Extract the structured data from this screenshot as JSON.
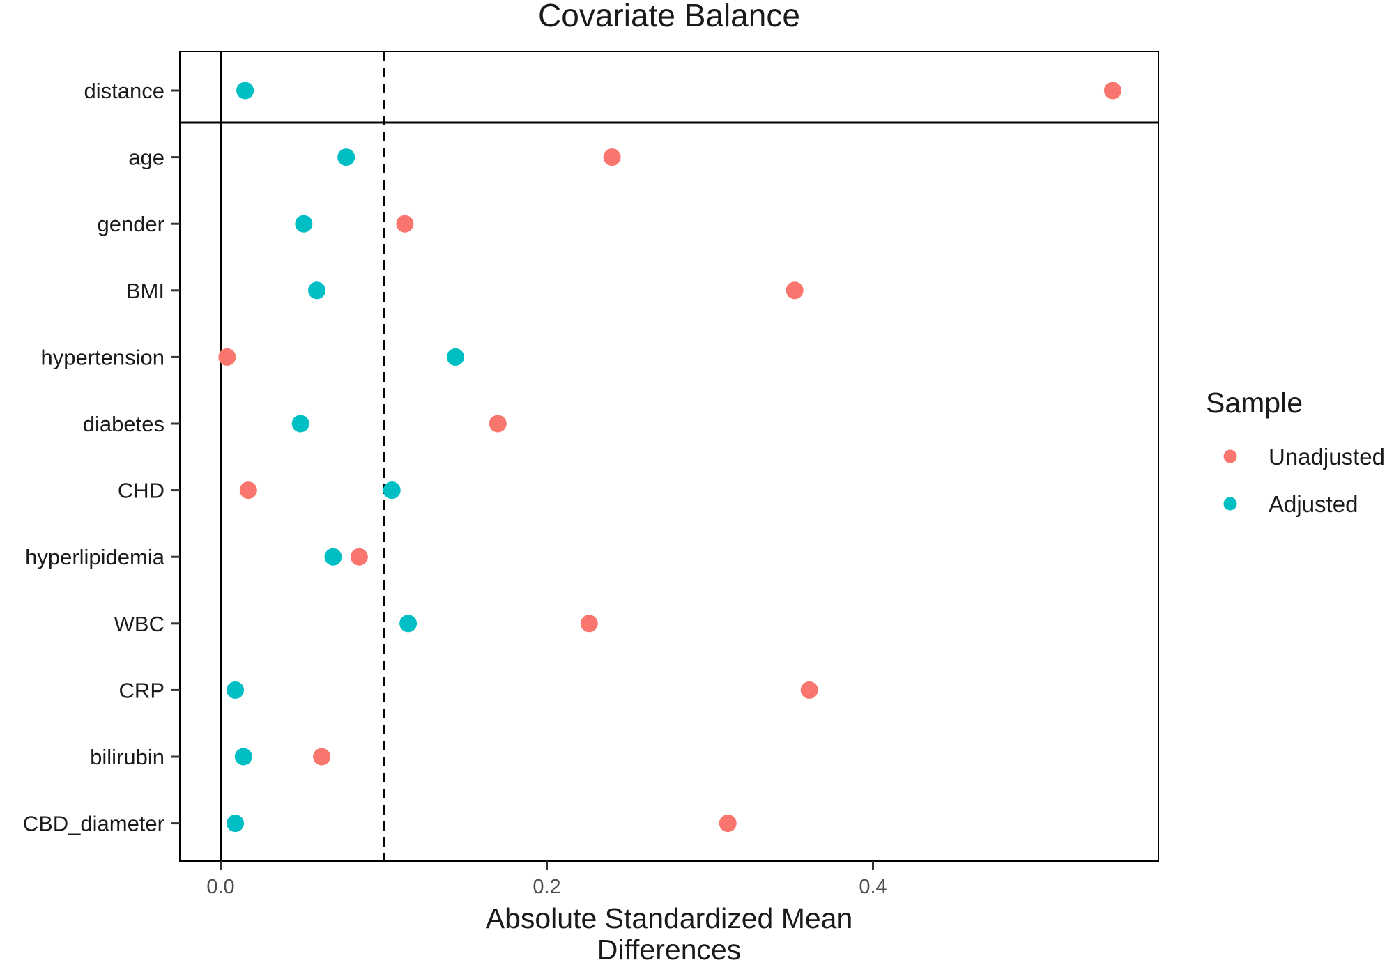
{
  "chart_data": {
    "type": "scatter",
    "title": "Covariate Balance",
    "xlabel_lines": [
      "Absolute Standardized Mean",
      "Differences"
    ],
    "ylabel": "",
    "xlim": [
      -0.025,
      0.575
    ],
    "x_ticks": [
      0.0,
      0.2,
      0.4
    ],
    "x_tick_labels": [
      "0.0",
      "0.2",
      "0.4"
    ],
    "threshold": 0.1,
    "categories": [
      "distance",
      "age",
      "gender",
      "BMI",
      "hypertension",
      "diabetes",
      "CHD",
      "hyperlipidemia",
      "WBC",
      "CRP",
      "bilirubin",
      "CBD_diameter"
    ],
    "separator_after": "distance",
    "grid": false,
    "legend": {
      "title": "Sample",
      "placement": "right"
    },
    "series": [
      {
        "name": "Unadjusted",
        "color": "#F8766D",
        "values": [
          0.547,
          0.24,
          0.113,
          0.352,
          0.004,
          0.17,
          0.017,
          0.085,
          0.226,
          0.361,
          0.062,
          0.311
        ]
      },
      {
        "name": "Adjusted",
        "color": "#00BFC4",
        "values": [
          0.015,
          0.077,
          0.051,
          0.059,
          0.144,
          0.049,
          0.105,
          0.069,
          0.115,
          0.009,
          0.014,
          0.009
        ]
      }
    ]
  }
}
